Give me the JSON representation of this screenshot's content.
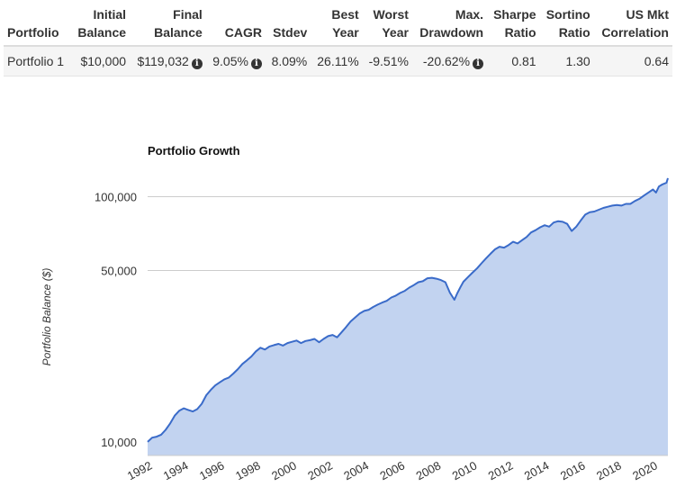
{
  "table": {
    "headers": [
      {
        "l1": "",
        "l2": "Portfolio"
      },
      {
        "l1": "Initial",
        "l2": "Balance"
      },
      {
        "l1": "Final",
        "l2": "Balance"
      },
      {
        "l1": "",
        "l2": "CAGR"
      },
      {
        "l1": "",
        "l2": "Stdev"
      },
      {
        "l1": "Best",
        "l2": "Year"
      },
      {
        "l1": "Worst",
        "l2": "Year"
      },
      {
        "l1": "Max.",
        "l2": "Drawdown"
      },
      {
        "l1": "Sharpe",
        "l2": "Ratio"
      },
      {
        "l1": "Sortino",
        "l2": "Ratio"
      },
      {
        "l1": "US Mkt",
        "l2": "Correlation"
      }
    ],
    "row": {
      "portfolio": "Portfolio 1",
      "initial_balance": "$10,000",
      "final_balance": "$119,032",
      "cagr": "9.05%",
      "stdev": "8.09%",
      "best_year": "26.11%",
      "worst_year": "-9.51%",
      "max_drawdown": "-20.62%",
      "sharpe_ratio": "0.81",
      "sortino_ratio": "1.30",
      "us_mkt_correlation": "0.64"
    },
    "info_icon": "info-circle-icon"
  },
  "chart_data": {
    "type": "area",
    "title": "Portfolio Growth",
    "xlabel": "",
    "ylabel": "Portfolio Balance ($)",
    "y_scale": "log",
    "ylim": [
      8800,
      122000
    ],
    "xlim": [
      1992.0,
      2020.83
    ],
    "yticks": [
      10000,
      50000,
      100000
    ],
    "ytick_labels": [
      "10,000",
      "50,000",
      "100,000"
    ],
    "xticks": [
      1992,
      1994,
      1996,
      1998,
      2000,
      2002,
      2004,
      2006,
      2008,
      2010,
      2012,
      2014,
      2016,
      2018,
      2020
    ],
    "xtick_labels": [
      "1992",
      "1994",
      "1996",
      "1998",
      "2000",
      "2002",
      "2004",
      "2006",
      "2008",
      "2010",
      "2012",
      "2014",
      "2016",
      "2018",
      "2020"
    ],
    "grid": true,
    "legend": "none",
    "line_color": "#3a6bc9",
    "fill_color": "#c2d3f0",
    "series": [
      {
        "x": [
          1992.0,
          1992.25,
          1992.5,
          1992.75,
          1993.0,
          1993.25,
          1993.5,
          1993.75,
          1994.0,
          1994.25,
          1994.5,
          1994.75,
          1995.0,
          1995.25,
          1995.5,
          1995.75,
          1996.0,
          1996.25,
          1996.5,
          1996.75,
          1997.0,
          1997.25,
          1997.5,
          1997.75,
          1998.0,
          1998.25,
          1998.5,
          1998.75,
          1999.0,
          1999.25,
          1999.5,
          1999.75,
          2000.0,
          2000.25,
          2000.5,
          2000.75,
          2001.0,
          2001.25,
          2001.5,
          2001.75,
          2002.0,
          2002.25,
          2002.5,
          2002.75,
          2003.0,
          2003.25,
          2003.5,
          2003.75,
          2004.0,
          2004.25,
          2004.5,
          2004.75,
          2005.0,
          2005.25,
          2005.5,
          2005.75,
          2006.0,
          2006.25,
          2006.5,
          2006.75,
          2007.0,
          2007.25,
          2007.5,
          2007.75,
          2008.0,
          2008.25,
          2008.5,
          2008.75,
          2009.0,
          2009.17,
          2009.33,
          2009.5,
          2009.75,
          2010.0,
          2010.25,
          2010.5,
          2010.75,
          2011.0,
          2011.25,
          2011.5,
          2011.75,
          2012.0,
          2012.25,
          2012.5,
          2012.75,
          2013.0,
          2013.25,
          2013.5,
          2013.75,
          2014.0,
          2014.25,
          2014.5,
          2014.75,
          2015.0,
          2015.25,
          2015.5,
          2015.75,
          2016.0,
          2016.25,
          2016.5,
          2016.75,
          2017.0,
          2017.25,
          2017.5,
          2017.75,
          2018.0,
          2018.25,
          2018.5,
          2018.75,
          2019.0,
          2019.25,
          2019.5,
          2019.75,
          2020.0,
          2020.17,
          2020.33,
          2020.5,
          2020.75,
          2020.83
        ],
        "values": [
          10000,
          10400,
          10500,
          10700,
          11200,
          11900,
          12800,
          13400,
          13700,
          13500,
          13300,
          13600,
          14300,
          15500,
          16300,
          17000,
          17500,
          18000,
          18300,
          19000,
          19800,
          20800,
          21500,
          22300,
          23400,
          24200,
          23800,
          24500,
          24800,
          25100,
          24700,
          25300,
          25600,
          25900,
          25300,
          25800,
          26000,
          26300,
          25500,
          26300,
          27000,
          27300,
          26700,
          28000,
          29400,
          31000,
          32200,
          33400,
          34200,
          34600,
          35500,
          36300,
          37000,
          37600,
          38800,
          39500,
          40500,
          41300,
          42600,
          43600,
          44800,
          45200,
          46500,
          46700,
          46300,
          45700,
          44800,
          40600,
          38000,
          40500,
          42700,
          45000,
          47000,
          49000,
          51000,
          53500,
          56000,
          58500,
          61000,
          62500,
          62000,
          63500,
          65500,
          64500,
          66500,
          68500,
          71500,
          73000,
          75000,
          76500,
          75500,
          78500,
          79500,
          79000,
          77500,
          72500,
          75500,
          80000,
          84500,
          86500,
          87000,
          88500,
          90000,
          91000,
          92000,
          92500,
          92000,
          93500,
          93500,
          96000,
          98000,
          101000,
          104000,
          107000,
          104000,
          110000,
          112000,
          114000,
          119032
        ]
      }
    ]
  }
}
